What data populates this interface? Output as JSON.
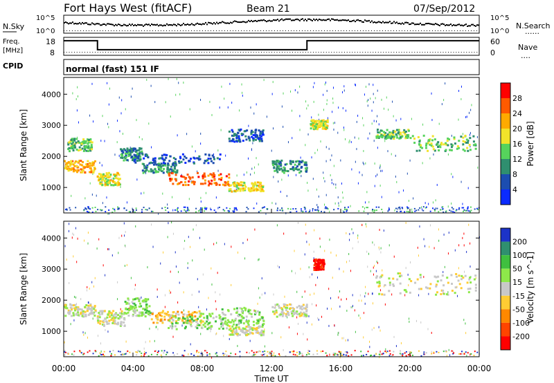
{
  "header": {
    "station": "Fort Hays West (fitACF)",
    "beam": "Beam 21",
    "date": "07/Sep/2012"
  },
  "strips": {
    "nsky_label": "N.Sky",
    "nsearch_label": "N.Search",
    "nsearch_dots": "......",
    "freq_label_1": "Freq.",
    "freq_label_2": "[MHz]",
    "nave_label": "Nave",
    "nave_dots": "....",
    "cpid_label": "CPID",
    "cpid_text": "normal (fast) 151 IF",
    "noise_tick_top": "10^5",
    "noise_tick_bottom": "10^0",
    "freq_ticks": [
      "18",
      "8"
    ],
    "nave_ticks": [
      "60",
      "0"
    ],
    "freq_steps": [
      {
        "start_h": 0,
        "end_h": 1.95,
        "mhz": 16.7
      },
      {
        "start_h": 1.95,
        "end_h": 14.05,
        "mhz": 10.8
      },
      {
        "start_h": 14.05,
        "end_h": 24,
        "mhz": 16.7
      }
    ],
    "nave_level": 8
  },
  "axes": {
    "x_ticks": [
      "00:00",
      "04:00",
      "08:00",
      "12:00",
      "16:00",
      "20:00",
      "00:00"
    ],
    "x_label": "Time UT",
    "y_label": "Slant Range [km]",
    "y_ticks": [
      "1000",
      "2000",
      "3000",
      "4000"
    ],
    "x_range_hours": [
      0,
      24
    ],
    "y_range_km": [
      180,
      4540
    ]
  },
  "power_scale": {
    "label": "Power [dB]",
    "ticks": [
      "4",
      "8",
      "12",
      "16",
      "20",
      "24",
      "28"
    ],
    "colors": [
      "#0b2bff",
      "#1c4db0",
      "#2f8f6f",
      "#56d35c",
      "#f2e32a",
      "#ffaa00",
      "#ff5a00",
      "#ff0000"
    ]
  },
  "velocity_scale": {
    "label": "Velocity [m s^-1]",
    "ticks": [
      "200",
      "100",
      "50",
      "15",
      "-15",
      "-50",
      "-100",
      "-200"
    ],
    "colors": [
      "#1c33c8",
      "#2f8f6f",
      "#3fbf3f",
      "#8ee84a",
      "#c8c8c8",
      "#ffcc33",
      "#ff8800",
      "#ff4400",
      "#ff0000"
    ]
  },
  "chart_data": {
    "type": "heatmap",
    "x_units": "hours UT",
    "y_units": "km",
    "power_features": [
      {
        "t": [
          0.0,
          1.8
        ],
        "r": [
          1500,
          1900
        ],
        "level": 5
      },
      {
        "t": [
          0.2,
          1.6
        ],
        "r": [
          2200,
          2600
        ],
        "level": 3
      },
      {
        "t": [
          1.9,
          3.2
        ],
        "r": [
          1100,
          1500
        ],
        "level": 4
      },
      {
        "t": [
          3.2,
          4.5
        ],
        "r": [
          1900,
          2300
        ],
        "level": 2
      },
      {
        "t": [
          4.5,
          6.5
        ],
        "r": [
          1500,
          1800
        ],
        "level": 2
      },
      {
        "t": [
          6.0,
          9.5
        ],
        "r": [
          1100,
          1500
        ],
        "level": 6
      },
      {
        "t": [
          9.5,
          11.5
        ],
        "r": [
          900,
          1200
        ],
        "level": 4
      },
      {
        "t": [
          4.0,
          9.0
        ],
        "r": [
          1800,
          2100
        ],
        "level": 1
      },
      {
        "t": [
          9.5,
          11.5
        ],
        "r": [
          2500,
          2900
        ],
        "level": 1
      },
      {
        "t": [
          12.0,
          14.0
        ],
        "r": [
          1500,
          1900
        ],
        "level": 2
      },
      {
        "t": [
          14.2,
          15.2
        ],
        "r": [
          2900,
          3200
        ],
        "level": 4
      },
      {
        "t": [
          18.0,
          20.0
        ],
        "r": [
          2600,
          2900
        ],
        "level": 3
      },
      {
        "t": [
          20.0,
          23.8
        ],
        "r": [
          2200,
          2700
        ],
        "level": 3
      }
    ],
    "velocity_features": [
      {
        "t": [
          0.0,
          1.8
        ],
        "r": [
          1500,
          1900
        ],
        "level": 4
      },
      {
        "t": [
          1.9,
          3.5
        ],
        "r": [
          1200,
          1700
        ],
        "level": 4
      },
      {
        "t": [
          3.5,
          5.0
        ],
        "r": [
          1500,
          2100
        ],
        "level": 3
      },
      {
        "t": [
          5.0,
          8.0
        ],
        "r": [
          1300,
          1700
        ],
        "level": 5
      },
      {
        "t": [
          6.0,
          9.5
        ],
        "r": [
          1100,
          1600
        ],
        "level": 3
      },
      {
        "t": [
          9.0,
          11.5
        ],
        "r": [
          1200,
          1800
        ],
        "level": 3
      },
      {
        "t": [
          9.5,
          11.5
        ],
        "r": [
          900,
          1200
        ],
        "level": 4
      },
      {
        "t": [
          12.0,
          14.0
        ],
        "r": [
          1500,
          1900
        ],
        "level": 4
      },
      {
        "t": [
          14.4,
          15.0
        ],
        "r": [
          3000,
          3350
        ],
        "level": 8
      },
      {
        "t": [
          18.0,
          23.8
        ],
        "r": [
          2200,
          2900
        ],
        "level": 4
      }
    ]
  }
}
